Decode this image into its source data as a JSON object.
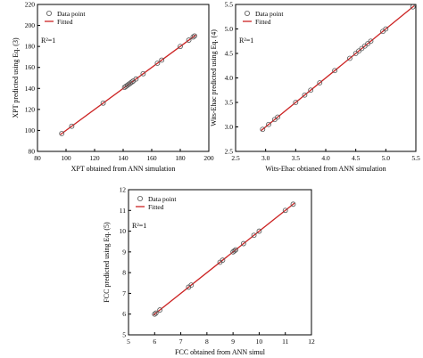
{
  "colors": {
    "fitted_line": "#cc2222",
    "marker": "#555555",
    "axis": "#000000",
    "background": "#ffffff"
  },
  "chart_data": [
    {
      "type": "scatter",
      "xlabel": "XPT obtained from ANN simulation",
      "ylabel": "XPT predicted using Eq. (3)",
      "xlim": [
        80,
        200
      ],
      "ylim": [
        80,
        220
      ],
      "xticks": [
        "80",
        "100",
        "120",
        "140",
        "160",
        "180",
        "200"
      ],
      "yticks": [
        "80",
        "100",
        "120",
        "140",
        "160",
        "180",
        "200",
        "220"
      ],
      "annotation": "R²=1",
      "legend": {
        "position": "top-left",
        "entries": [
          "Data point",
          "Fitted"
        ]
      },
      "series": [
        {
          "name": "Data point",
          "marker": "circle",
          "x": [
            97,
            104,
            126,
            141,
            142,
            143,
            144,
            145,
            146,
            147,
            149,
            154,
            164,
            167,
            180,
            186,
            189,
            190
          ],
          "y": [
            97,
            104,
            126,
            141,
            142,
            143,
            144,
            145,
            146,
            147,
            149,
            154,
            164,
            167,
            180,
            186,
            189,
            190
          ]
        },
        {
          "name": "Fitted",
          "line": true,
          "x": [
            96,
            191
          ],
          "y": [
            96,
            191
          ]
        }
      ]
    },
    {
      "type": "scatter",
      "xlabel": "Wits-Ehac obtianed from ANN simulation",
      "ylabel": "Wits-Ehac predicted using Eq. (4)",
      "xlim": [
        2.5,
        5.5
      ],
      "ylim": [
        2.5,
        5.5
      ],
      "xticks": [
        "2.5",
        "3.0",
        "3.5",
        "4.0",
        "4.5",
        "5.0",
        "5.5"
      ],
      "yticks": [
        "2.5",
        "3.0",
        "3.5",
        "4.0",
        "4.5",
        "5.0",
        "5.5"
      ],
      "annotation": "R²=1",
      "legend": {
        "position": "top-left",
        "entries": [
          "Data point",
          "Fitted"
        ]
      },
      "series": [
        {
          "name": "Data point",
          "marker": "circle",
          "x": [
            2.95,
            3.05,
            3.15,
            3.2,
            3.5,
            3.65,
            3.75,
            3.9,
            4.15,
            4.4,
            4.5,
            4.55,
            4.6,
            4.65,
            4.7,
            4.75,
            4.95,
            5.0,
            5.45
          ],
          "y": [
            2.95,
            3.05,
            3.15,
            3.2,
            3.5,
            3.65,
            3.75,
            3.9,
            4.15,
            4.4,
            4.5,
            4.55,
            4.6,
            4.65,
            4.7,
            4.75,
            4.95,
            5.0,
            5.45
          ]
        },
        {
          "name": "Fitted",
          "line": true,
          "x": [
            2.92,
            5.47
          ],
          "y": [
            2.92,
            5.47
          ]
        }
      ]
    },
    {
      "type": "scatter",
      "xlabel": "FCC obtained from ANN simul",
      "ylabel": "FCC predicted using Eq. (5)",
      "xlim": [
        5,
        12
      ],
      "ylim": [
        5,
        12
      ],
      "xticks": [
        "5",
        "6",
        "7",
        "8",
        "9",
        "10",
        "11",
        "12"
      ],
      "yticks": [
        "5",
        "6",
        "7",
        "8",
        "9",
        "10",
        "11",
        "12"
      ],
      "annotation": "R²=1",
      "legend": {
        "position": "top-left",
        "entries": [
          "Data point",
          "Fitted"
        ]
      },
      "series": [
        {
          "name": "Data point",
          "marker": "circle",
          "x": [
            6.0,
            6.05,
            6.2,
            7.3,
            7.4,
            8.5,
            8.6,
            9.0,
            9.05,
            9.1,
            9.4,
            9.8,
            10.0,
            11.0,
            11.3
          ],
          "y": [
            6.0,
            6.05,
            6.2,
            7.3,
            7.4,
            8.5,
            8.6,
            9.0,
            9.05,
            9.1,
            9.4,
            9.8,
            10.0,
            11.0,
            11.3
          ]
        },
        {
          "name": "Fitted",
          "line": true,
          "x": [
            5.95,
            11.35
          ],
          "y": [
            5.95,
            11.35
          ]
        }
      ]
    }
  ]
}
